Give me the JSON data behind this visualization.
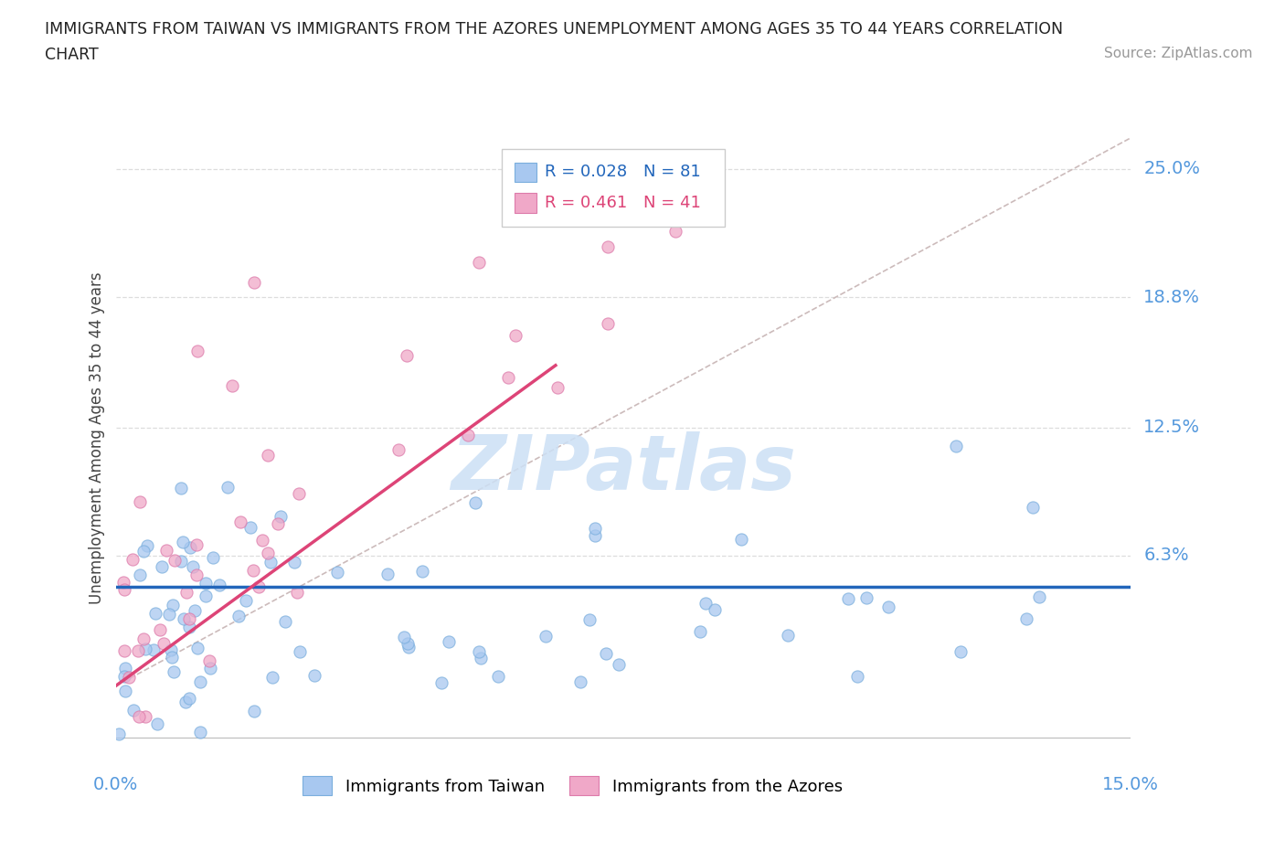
{
  "title_line1": "IMMIGRANTS FROM TAIWAN VS IMMIGRANTS FROM THE AZORES UNEMPLOYMENT AMONG AGES 35 TO 44 YEARS CORRELATION",
  "title_line2": "CHART",
  "source": "Source: ZipAtlas.com",
  "ylabel": "Unemployment Among Ages 35 to 44 years",
  "xlim": [
    0.0,
    0.15
  ],
  "ylim": [
    -0.03,
    0.27
  ],
  "ytick_vals": [
    0.063,
    0.125,
    0.188,
    0.25
  ],
  "ytick_labels": [
    "6.3%",
    "12.5%",
    "18.8%",
    "25.0%"
  ],
  "taiwan_color": "#a8c8f0",
  "taiwan_edge_color": "#7aaedd",
  "azores_color": "#f0a8c8",
  "azores_edge_color": "#dd7aaa",
  "taiwan_line_color": "#2266bb",
  "azores_line_color": "#dd4477",
  "ref_line_color": "#ccbbbb",
  "legend_R_taiwan": "0.028",
  "legend_N_taiwan": "81",
  "legend_R_azores": "0.461",
  "legend_N_azores": "41",
  "watermark_text": "ZIPatlas",
  "watermark_color": "#cce0f5",
  "background_color": "#ffffff",
  "grid_color": "#dddddd",
  "axis_label_color": "#5599dd",
  "title_color": "#222222",
  "source_color": "#999999",
  "taiwan_line_y0": 0.048,
  "taiwan_line_y1": 0.048,
  "azores_line_y0": 0.0,
  "azores_line_y1": 0.155,
  "azores_line_x1": 0.065,
  "ref_line_x0": 0.0,
  "ref_line_y0": 0.0,
  "ref_line_x1": 0.15,
  "ref_line_y1": 0.265
}
